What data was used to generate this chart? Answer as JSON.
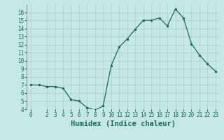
{
  "x": [
    0,
    1,
    2,
    3,
    4,
    5,
    6,
    7,
    8,
    9,
    10,
    11,
    12,
    13,
    14,
    15,
    16,
    17,
    18,
    19,
    20,
    21,
    22,
    23
  ],
  "y": [
    7.0,
    7.0,
    6.8,
    6.8,
    6.6,
    5.2,
    5.0,
    4.2,
    3.9,
    4.4,
    9.4,
    11.7,
    12.7,
    13.9,
    15.0,
    15.0,
    15.3,
    14.3,
    16.4,
    15.3,
    12.1,
    10.7,
    9.6,
    8.7
  ],
  "line_color": "#1a6b5a",
  "marker": "o",
  "marker_size": 2.0,
  "bg_color": "#c5e8e5",
  "grid_color": "#a8ceca",
  "xlabel": "Humidex (Indice chaleur)",
  "ylim": [
    4,
    17
  ],
  "xlim": [
    -0.5,
    23.5
  ],
  "yticks": [
    4,
    5,
    6,
    7,
    8,
    9,
    10,
    11,
    12,
    13,
    14,
    15,
    16
  ],
  "xticks": [
    0,
    2,
    3,
    4,
    5,
    6,
    7,
    8,
    9,
    10,
    11,
    12,
    13,
    14,
    15,
    16,
    17,
    18,
    19,
    20,
    21,
    22,
    23
  ],
  "tick_labelsize": 5.5,
  "xlabel_fontsize": 7.5,
  "linewidth": 0.9
}
